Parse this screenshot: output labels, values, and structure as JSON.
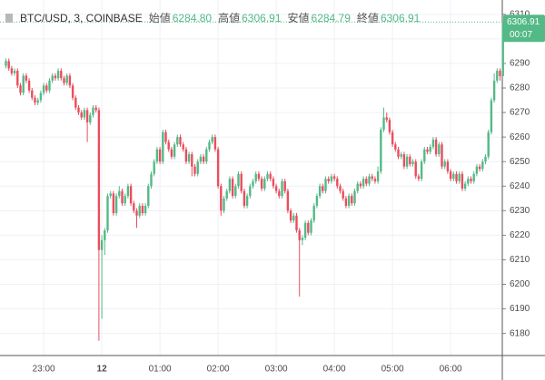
{
  "chart_data": {
    "type": "candlestick",
    "title": "BTC/USD, 3, COINBASE",
    "ohlc_header": [
      {
        "label": "始値",
        "value": "6284.80"
      },
      {
        "label": "高値",
        "value": "6306.91"
      },
      {
        "label": "安値",
        "value": "6284.79"
      },
      {
        "label": "終値",
        "value": "6306.91"
      }
    ],
    "last_price_label": "6306.91",
    "countdown": "00:07",
    "up_color": "#53b987",
    "down_color": "#eb4d5c",
    "grid": true,
    "ylim": [
      6171,
      6314
    ],
    "yticks": [
      6180,
      6190,
      6200,
      6210,
      6220,
      6230,
      6240,
      6250,
      6260,
      6270,
      6280,
      6290,
      6300,
      6310
    ],
    "categories": [
      null,
      null,
      null,
      null,
      null,
      null,
      null,
      null,
      null,
      null,
      null,
      null,
      null,
      "23:00",
      null,
      null,
      null,
      null,
      null,
      null,
      null,
      null,
      null,
      null,
      null,
      null,
      null,
      null,
      null,
      null,
      null,
      null,
      null,
      "12",
      null,
      null,
      null,
      null,
      null,
      null,
      null,
      null,
      null,
      null,
      null,
      null,
      null,
      null,
      null,
      null,
      null,
      null,
      null,
      "01:00",
      null,
      null,
      null,
      null,
      null,
      null,
      null,
      null,
      null,
      null,
      null,
      null,
      null,
      null,
      null,
      null,
      null,
      null,
      null,
      "02:00",
      null,
      null,
      null,
      null,
      null,
      null,
      null,
      null,
      null,
      null,
      null,
      null,
      null,
      null,
      null,
      null,
      null,
      null,
      null,
      "03:00",
      null,
      null,
      null,
      null,
      null,
      null,
      null,
      null,
      null,
      null,
      null,
      null,
      null,
      null,
      null,
      null,
      null,
      null,
      null,
      "04:00",
      null,
      null,
      null,
      null,
      null,
      null,
      null,
      null,
      null,
      null,
      null,
      null,
      null,
      null,
      null,
      null,
      null,
      null,
      null,
      "05:00",
      null,
      null,
      null,
      null,
      null,
      null,
      null,
      null,
      null,
      null,
      null,
      null,
      null,
      null,
      null,
      null,
      null,
      null,
      null,
      "06:00",
      null,
      null,
      null,
      null,
      null,
      null,
      null,
      null,
      null,
      null,
      null,
      null,
      null,
      null,
      null,
      null,
      null,
      null
    ],
    "open": [
      6289,
      6291,
      6288,
      6286,
      6287,
      6281,
      6278,
      6285,
      6283,
      6279,
      6276,
      6274,
      6275,
      6278,
      6281,
      6279,
      6283,
      6285,
      6284,
      6287,
      6284,
      6282,
      6285,
      6281,
      6276,
      6272,
      6270,
      6268,
      6271,
      6266,
      6269,
      6272,
      6271,
      6214,
      6218,
      6222,
      6236,
      6237,
      6229,
      6236,
      6238,
      6233,
      6236,
      6240,
      6233,
      6230,
      6228,
      6232,
      6229,
      6232,
      6240,
      6245,
      6250,
      6255,
      6250,
      6262,
      6258,
      6255,
      6252,
      6257,
      6260,
      6257,
      6255,
      6250,
      6253,
      6248,
      6245,
      6250,
      6252,
      6250,
      6255,
      6258,
      6260,
      6255,
      6240,
      6230,
      6235,
      6238,
      6243,
      6236,
      6240,
      6245,
      6238,
      6232,
      6236,
      6240,
      6242,
      6245,
      6243,
      6239,
      6243,
      6245,
      6243,
      6240,
      6238,
      6236,
      6242,
      6238,
      6230,
      6226,
      6228,
      6222,
      6218,
      6219,
      6225,
      6221,
      6226,
      6232,
      6236,
      6240,
      6238,
      6243,
      6242,
      6244,
      6243,
      6240,
      6238,
      6235,
      6232,
      6236,
      6233,
      6238,
      6241,
      6240,
      6243,
      6241,
      6244,
      6243,
      6242,
      6246,
      6263,
      6268,
      6267,
      6262,
      6257,
      6255,
      6252,
      6253,
      6248,
      6252,
      6249,
      6250,
      6244,
      6243,
      6250,
      6255,
      6254,
      6256,
      6259,
      6253,
      6257,
      6248,
      6250,
      6246,
      6243,
      6245,
      6242,
      6245,
      6239,
      6241,
      6243,
      6242,
      6245,
      6248,
      6247,
      6250,
      6252,
      6262,
      6275,
      6283,
      6287,
      6284.8
    ],
    "high": [
      6292,
      6292,
      6289,
      6288,
      6288,
      6282,
      6286,
      6286,
      6284,
      6280,
      6277,
      6276,
      6279,
      6282,
      6282,
      6284,
      6286,
      6286,
      6288,
      6288,
      6285,
      6286,
      6286,
      6282,
      6277,
      6273,
      6271,
      6272,
      6272,
      6270,
      6273,
      6273,
      6272,
      6220,
      6223,
      6237,
      6238,
      6238,
      6237,
      6240,
      6239,
      6237,
      6241,
      6241,
      6234,
      6231,
      6233,
      6233,
      6233,
      6241,
      6246,
      6251,
      6256,
      6256,
      6263,
      6263,
      6259,
      6256,
      6258,
      6261,
      6261,
      6258,
      6256,
      6254,
      6254,
      6249,
      6251,
      6253,
      6253,
      6256,
      6259,
      6261,
      6261,
      6256,
      6241,
      6236,
      6239,
      6244,
      6244,
      6241,
      6246,
      6246,
      6239,
      6237,
      6241,
      6243,
      6246,
      6246,
      6244,
      6244,
      6246,
      6246,
      6244,
      6241,
      6239,
      6243,
      6243,
      6239,
      6231,
      6229,
      6229,
      6223,
      6220,
      6226,
      6226,
      6227,
      6233,
      6237,
      6241,
      6241,
      6244,
      6244,
      6245,
      6245,
      6244,
      6241,
      6239,
      6236,
      6237,
      6237,
      6239,
      6242,
      6242,
      6244,
      6244,
      6245,
      6245,
      6244,
      6248,
      6264,
      6272,
      6270,
      6268,
      6263,
      6258,
      6256,
      6254,
      6254,
      6253,
      6253,
      6251,
      6251,
      6245,
      6251,
      6256,
      6256,
      6257,
      6260,
      6260,
      6258,
      6258,
      6251,
      6251,
      6247,
      6246,
      6246,
      6246,
      6246,
      6242,
      6244,
      6244,
      6246,
      6249,
      6249,
      6251,
      6253,
      6263,
      6276,
      6286,
      6288,
      6288,
      6306.91
    ],
    "low": [
      6288,
      6287,
      6285,
      6285,
      6280,
      6277,
      6277,
      6282,
      6278,
      6275,
      6273,
      6273,
      6274,
      6277,
      6278,
      6278,
      6282,
      6283,
      6283,
      6283,
      6281,
      6281,
      6280,
      6275,
      6271,
      6269,
      6267,
      6267,
      6258,
      6265,
      6268,
      6270,
      6177,
      6186,
      6212,
      6221,
      6235,
      6228,
      6228,
      6235,
      6232,
      6232,
      6235,
      6232,
      6229,
      6223,
      6227,
      6228,
      6228,
      6231,
      6239,
      6244,
      6249,
      6249,
      6249,
      6257,
      6254,
      6251,
      6251,
      6256,
      6256,
      6254,
      6249,
      6249,
      6244,
      6244,
      6244,
      6249,
      6249,
      6249,
      6254,
      6257,
      6254,
      6239,
      6228,
      6229,
      6234,
      6237,
      6235,
      6235,
      6239,
      6237,
      6231,
      6231,
      6235,
      6239,
      6241,
      6242,
      6238,
      6238,
      6242,
      6242,
      6239,
      6237,
      6235,
      6235,
      6237,
      6229,
      6225,
      6225,
      6221,
      6195,
      6216,
      6218,
      6220,
      6220,
      6225,
      6231,
      6235,
      6237,
      6237,
      6241,
      6241,
      6242,
      6239,
      6237,
      6234,
      6231,
      6231,
      6232,
      6232,
      6237,
      6239,
      6239,
      6240,
      6240,
      6242,
      6241,
      6241,
      6245,
      6262,
      6266,
      6261,
      6256,
      6254,
      6251,
      6251,
      6247,
      6247,
      6248,
      6248,
      6243,
      6242,
      6242,
      6249,
      6253,
      6253,
      6255,
      6252,
      6252,
      6247,
      6247,
      6245,
      6242,
      6242,
      6241,
      6241,
      6238,
      6238,
      6240,
      6241,
      6241,
      6244,
      6246,
      6246,
      6249,
      6251,
      6261,
      6274,
      6282,
      6283,
      6284.79
    ],
    "close": [
      6291,
      6288,
      6286,
      6287,
      6281,
      6278,
      6285,
      6283,
      6279,
      6276,
      6274,
      6275,
      6278,
      6281,
      6279,
      6283,
      6285,
      6284,
      6287,
      6284,
      6282,
      6285,
      6281,
      6276,
      6272,
      6270,
      6268,
      6271,
      6266,
      6269,
      6272,
      6271,
      6214,
      6218,
      6222,
      6236,
      6237,
      6229,
      6236,
      6238,
      6233,
      6236,
      6240,
      6233,
      6230,
      6228,
      6232,
      6229,
      6232,
      6240,
      6245,
      6250,
      6255,
      6250,
      6262,
      6258,
      6255,
      6252,
      6257,
      6260,
      6257,
      6255,
      6250,
      6253,
      6248,
      6245,
      6250,
      6252,
      6250,
      6255,
      6258,
      6260,
      6255,
      6240,
      6230,
      6235,
      6238,
      6243,
      6236,
      6240,
      6245,
      6238,
      6232,
      6236,
      6240,
      6242,
      6245,
      6243,
      6239,
      6243,
      6245,
      6243,
      6240,
      6238,
      6236,
      6242,
      6238,
      6230,
      6226,
      6228,
      6222,
      6218,
      6219,
      6225,
      6221,
      6226,
      6232,
      6236,
      6240,
      6238,
      6243,
      6242,
      6244,
      6243,
      6240,
      6238,
      6235,
      6232,
      6236,
      6233,
      6238,
      6241,
      6240,
      6243,
      6241,
      6244,
      6243,
      6242,
      6246,
      6263,
      6268,
      6267,
      6262,
      6257,
      6255,
      6252,
      6253,
      6248,
      6252,
      6249,
      6250,
      6244,
      6243,
      6250,
      6255,
      6254,
      6256,
      6259,
      6253,
      6257,
      6248,
      6250,
      6246,
      6243,
      6245,
      6242,
      6245,
      6239,
      6241,
      6243,
      6242,
      6245,
      6248,
      6247,
      6250,
      6252,
      6262,
      6275,
      6283,
      6287,
      6284.8,
      6306.91
    ]
  }
}
